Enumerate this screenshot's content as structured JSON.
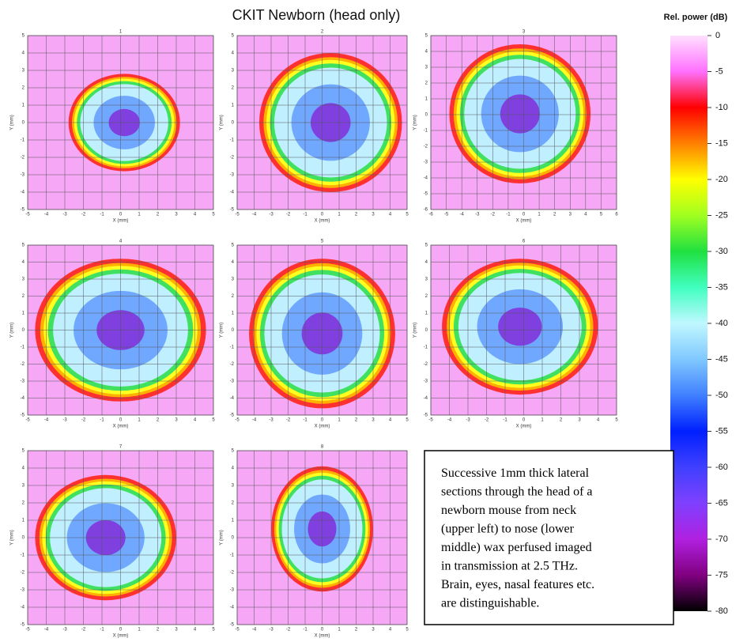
{
  "title": "CKIT Newborn (head only)",
  "colorbar": {
    "label": "Rel. power (dB)",
    "lim": [
      0,
      -80
    ],
    "ticks": [
      0,
      -5,
      -10,
      -15,
      -20,
      -25,
      -30,
      -35,
      -40,
      -45,
      -50,
      -55,
      -60,
      -65,
      -70,
      -75,
      -80
    ]
  },
  "panels": [
    {
      "number": "1",
      "xlabel": "X (mm)",
      "ylabel": "Y (mm)",
      "xlim": [
        -5,
        5
      ],
      "ylim": [
        -5,
        5
      ],
      "xticks": [
        -5,
        -4,
        -3,
        -2,
        -1,
        0,
        1,
        2,
        3,
        4,
        5
      ],
      "yticks": [
        -5,
        -4,
        -3,
        -2,
        -1,
        0,
        1,
        2,
        3,
        4,
        5
      ]
    },
    {
      "number": "2",
      "xlabel": "X (mm)",
      "ylabel": "Y (mm)",
      "xlim": [
        -5,
        5
      ],
      "ylim": [
        -5,
        5
      ],
      "xticks": [
        -5,
        -4,
        -3,
        -2,
        -1,
        0,
        1,
        2,
        3,
        4,
        5
      ],
      "yticks": [
        -5,
        -4,
        -3,
        -2,
        -1,
        0,
        1,
        2,
        3,
        4,
        5
      ]
    },
    {
      "number": "3",
      "xlabel": "X (mm)",
      "ylabel": "Y (mm)",
      "xlim": [
        -6,
        6
      ],
      "ylim": [
        -6,
        5
      ],
      "xticks": [
        -6,
        -5,
        -4,
        -3,
        -2,
        -1,
        0,
        1,
        2,
        3,
        4,
        5,
        6
      ],
      "yticks": [
        -6,
        -5,
        -4,
        -3,
        -2,
        -1,
        0,
        1,
        2,
        3,
        4,
        5
      ]
    },
    {
      "number": "4",
      "xlabel": "X (mm)",
      "ylabel": "Y (mm)",
      "xlim": [
        -5,
        5
      ],
      "ylim": [
        -5,
        5
      ],
      "xticks": [
        -5,
        -4,
        -3,
        -2,
        -1,
        0,
        1,
        2,
        3,
        4,
        5
      ],
      "yticks": [
        -5,
        -4,
        -3,
        -2,
        -1,
        0,
        1,
        2,
        3,
        4,
        5
      ]
    },
    {
      "number": "5",
      "xlabel": "X (mm)",
      "ylabel": "Y (mm)",
      "xlim": [
        -5,
        5
      ],
      "ylim": [
        -5,
        5
      ],
      "xticks": [
        -5,
        -4,
        -3,
        -2,
        -1,
        0,
        1,
        2,
        3,
        4,
        5
      ],
      "yticks": [
        -5,
        -4,
        -3,
        -2,
        -1,
        0,
        1,
        2,
        3,
        4,
        5
      ]
    },
    {
      "number": "6",
      "xlabel": "X (mm)",
      "ylabel": "Y (mm)",
      "xlim": [
        -5,
        5
      ],
      "ylim": [
        -5,
        5
      ],
      "xticks": [
        -5,
        -4,
        -3,
        -2,
        -1,
        0,
        1,
        2,
        3,
        4,
        5
      ],
      "yticks": [
        -5,
        -4,
        -3,
        -2,
        -1,
        0,
        1,
        2,
        3,
        4,
        5
      ]
    },
    {
      "number": "7",
      "xlabel": "X (mm)",
      "ylabel": "Y (mm)",
      "xlim": [
        -5,
        5
      ],
      "ylim": [
        -5,
        5
      ],
      "xticks": [
        -5,
        -4,
        -3,
        -2,
        -1,
        0,
        1,
        2,
        3,
        4,
        5
      ],
      "yticks": [
        -5,
        -4,
        -3,
        -2,
        -1,
        0,
        1,
        2,
        3,
        4,
        5
      ]
    },
    {
      "number": "8",
      "xlabel": "X (mm)",
      "ylabel": "Y (mm)",
      "xlim": [
        -5,
        5
      ],
      "ylim": [
        -5,
        5
      ],
      "xticks": [
        -5,
        -4,
        -3,
        -2,
        -1,
        0,
        1,
        2,
        3,
        4,
        5
      ],
      "yticks": [
        -5,
        -4,
        -3,
        -2,
        -1,
        0,
        1,
        2,
        3,
        4,
        5
      ]
    }
  ],
  "caption": {
    "lines": [
      "Successive 1mm thick lateral",
      "sections through the head of a",
      "newborn mouse from neck",
      "(upper left) to nose (lower",
      "middle) wax perfused  imaged",
      "in transmission at 2.5 THz.",
      "Brain, eyes, nasal features etc.",
      "are distinguishable."
    ]
  }
}
